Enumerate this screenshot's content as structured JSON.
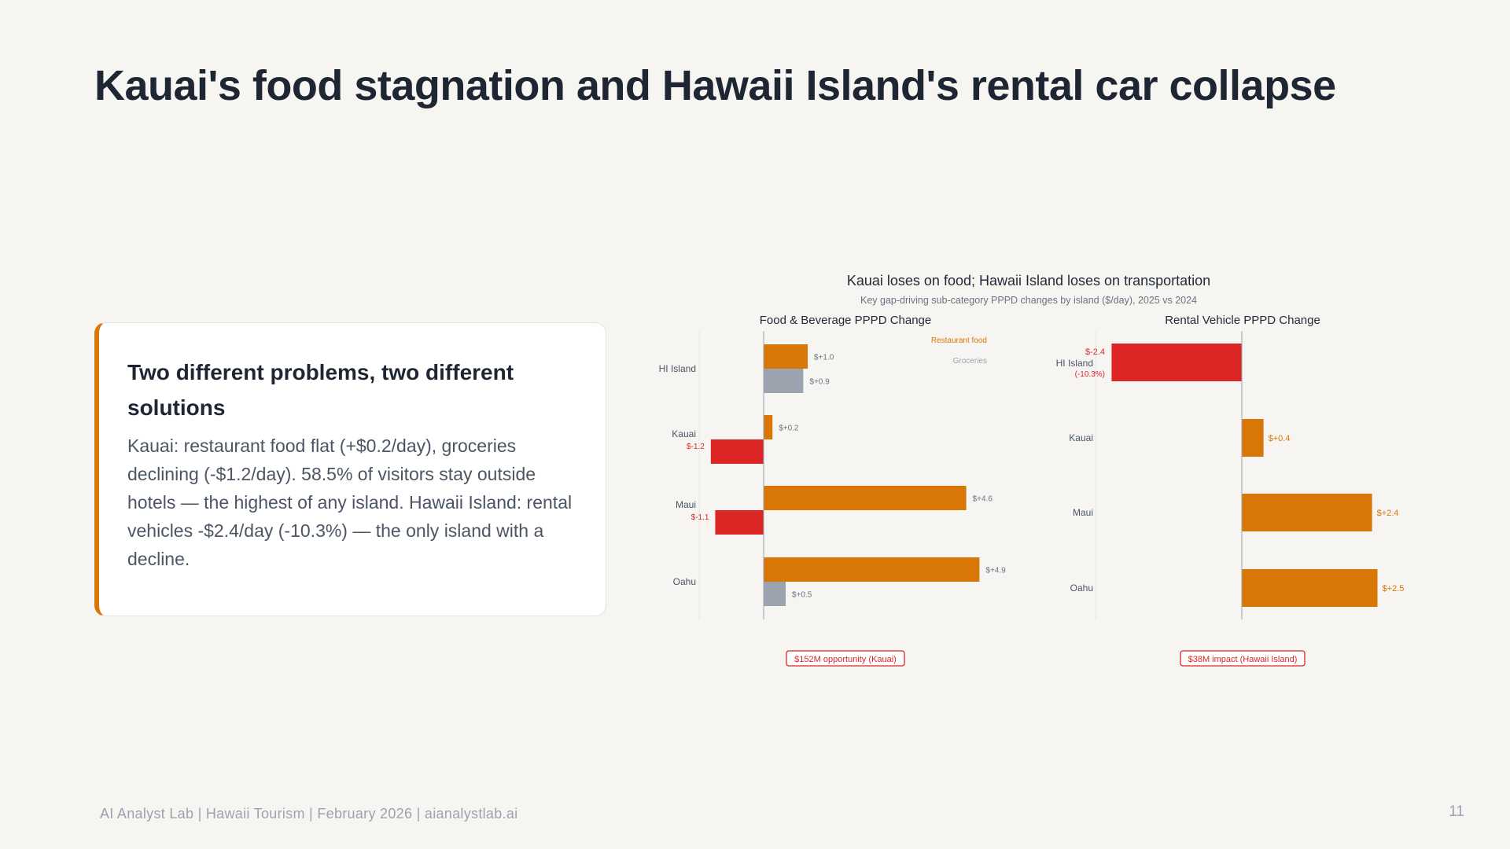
{
  "title": "Kauai's food stagnation and Hawaii Island's rental car collapse",
  "card": {
    "heading": "Two different problems, two different solutions",
    "body": "Kauai: restaurant food flat (+$0.2/day), groceries declining (-$1.2/day). 58.5% of visitors stay outside hotels — the highest of any island. Hawaii Island: rental vehicles -$2.4/day (-10.3%) — the only island with a decline."
  },
  "footer": "AI Analyst Lab | Hawaii Tourism | February 2026 | aianalystlab.ai",
  "page_number": "11",
  "colors": {
    "orange": "#d97706",
    "gray": "#9ca3af",
    "red": "#dc2626"
  },
  "chart_data": {
    "title": "Kauai loses on food; Hawaii Island loses on transportation",
    "subtitle": "Key gap-driving sub-category PPPD changes by island ($/day), 2025 vs 2024",
    "panels": [
      {
        "type": "bar",
        "orientation": "horizontal",
        "title": "Food & Beverage PPPD Change",
        "categories": [
          "HI Island",
          "Kauai",
          "Maui",
          "Oahu"
        ],
        "series": [
          {
            "name": "Restaurant food",
            "values": [
              1.0,
              0.2,
              4.6,
              4.9
            ],
            "labels": [
              "$+1.0",
              "$+0.2",
              "$+4.6",
              "$+4.9"
            ]
          },
          {
            "name": "Groceries",
            "values": [
              0.9,
              -1.2,
              -1.1,
              0.5
            ],
            "labels": [
              "$+0.9",
              "$-1.2",
              "$-1.1",
              "$+0.5"
            ]
          }
        ],
        "legend": "top-right",
        "annotation": "$152M opportunity (Kauai)"
      },
      {
        "type": "bar",
        "orientation": "horizontal",
        "title": "Rental Vehicle PPPD Change",
        "categories": [
          "HI Island",
          "Kauai",
          "Maui",
          "Oahu"
        ],
        "values": [
          -2.4,
          0.4,
          2.4,
          2.5
        ],
        "labels": [
          "$-2.4",
          "$+0.4",
          "$+2.4",
          "$+2.5"
        ],
        "extra_label": "(-10.3%)",
        "annotation": "$38M impact (Hawaii Island)"
      }
    ]
  }
}
